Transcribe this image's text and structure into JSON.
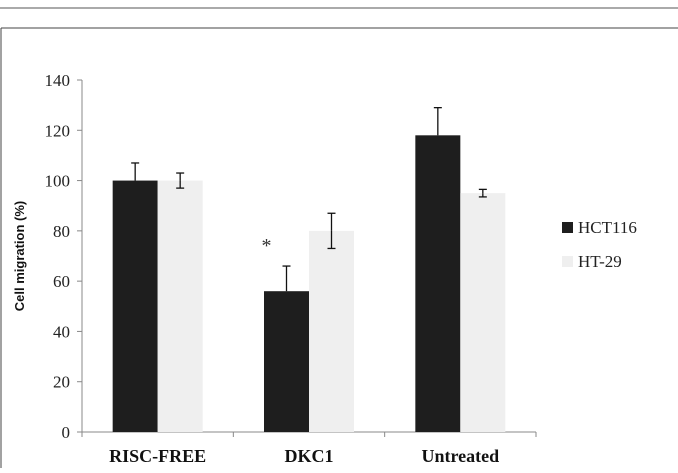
{
  "chart_data": {
    "type": "bar",
    "title": "",
    "xlabel": "",
    "ylabel": "Cell migration (%)",
    "ylim": [
      0,
      140
    ],
    "yticks": [
      0,
      20,
      40,
      60,
      80,
      100,
      120,
      140
    ],
    "grid": false,
    "legend_position": "right",
    "categories": [
      "RISC-FREE",
      "DKC1",
      "Untreated"
    ],
    "series": [
      {
        "name": "HCT116",
        "color": "#1e1e1e",
        "values": [
          100,
          56,
          118
        ],
        "errors": [
          7,
          10,
          11
        ]
      },
      {
        "name": "HT-29",
        "color": "#efefef",
        "values": [
          100,
          80,
          95
        ],
        "errors": [
          3,
          7,
          1.5
        ]
      }
    ],
    "annotations": [
      {
        "text": "*",
        "category": "DKC1",
        "series": "HCT116"
      }
    ]
  }
}
